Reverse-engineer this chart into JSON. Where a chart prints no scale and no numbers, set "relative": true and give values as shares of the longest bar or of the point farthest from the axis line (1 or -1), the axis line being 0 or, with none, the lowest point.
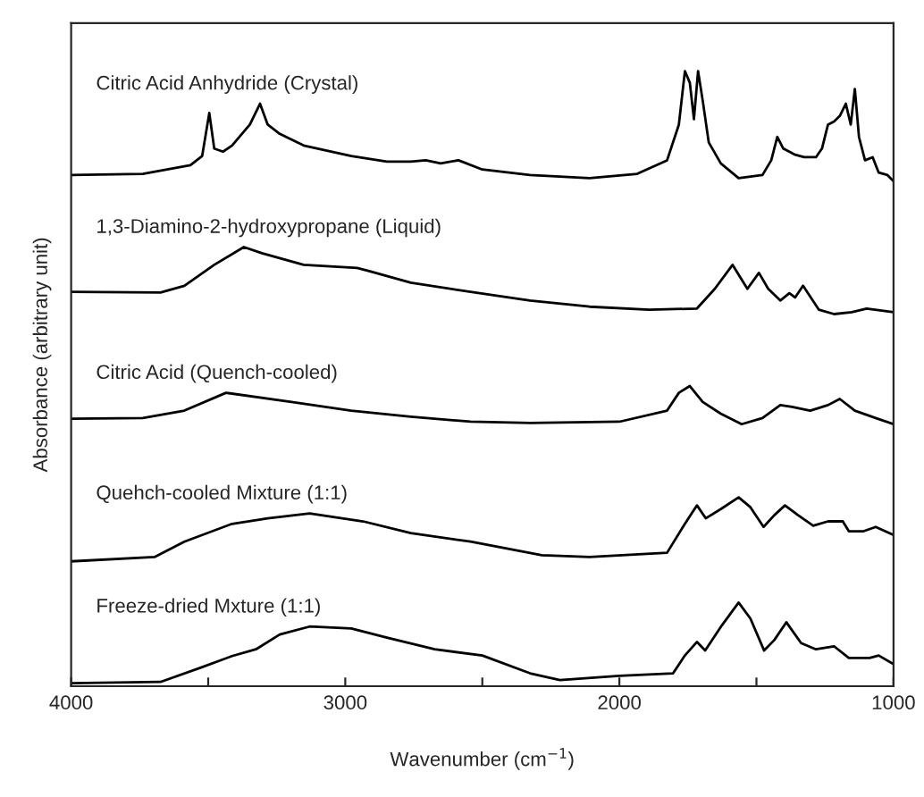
{
  "chart_data": {
    "type": "line",
    "relative": true,
    "xlabel": "Wavenumber (cm$^{−1}$)",
    "ylabel": "Absorbance (arbitrary unit)",
    "xlim": [
      4000,
      1000
    ],
    "xticks": [
      4000,
      {
        "value": 3500,
        "label": null
      },
      3000,
      {
        "value": 2500,
        "label": null
      },
      2000,
      {
        "value": 1500,
        "label": null
      },
      1000
    ],
    "grid": false,
    "legend": false,
    "tick_labels": "x",
    "line_style": "solid",
    "marker": "none",
    "series": [
      {
        "name": "Citric Acid Anhydride (Crystal)",
        "color": "#000000",
        "x": [
          4000,
          3739,
          3565,
          3522,
          3496,
          3478,
          3446,
          3413,
          3348,
          3311,
          3283,
          3239,
          3152,
          2978,
          2848,
          2761,
          2706,
          2652,
          2587,
          2500,
          2326,
          2109,
          1935,
          1826,
          1783,
          1761,
          1743,
          1728,
          1713,
          1696,
          1674,
          1630,
          1565,
          1478,
          1446,
          1424,
          1402,
          1380,
          1359,
          1326,
          1283,
          1261,
          1239,
          1217,
          1196,
          1174,
          1156,
          1141,
          1126,
          1104,
          1076,
          1054,
          1022,
          1000
        ],
        "values": [
          0.831,
          0.833,
          0.847,
          0.862,
          0.932,
          0.874,
          0.869,
          0.879,
          0.913,
          0.947,
          0.913,
          0.898,
          0.879,
          0.862,
          0.853,
          0.853,
          0.855,
          0.85,
          0.855,
          0.84,
          0.831,
          0.826,
          0.833,
          0.855,
          0.913,
          1.0,
          0.981,
          0.922,
          1.0,
          0.952,
          0.884,
          0.85,
          0.826,
          0.831,
          0.855,
          0.893,
          0.874,
          0.869,
          0.864,
          0.86,
          0.86,
          0.874,
          0.913,
          0.918,
          0.927,
          0.947,
          0.913,
          0.971,
          0.893,
          0.855,
          0.86,
          0.835,
          0.831,
          0.821
        ]
      },
      {
        "name": "1,3-Diamino-2-hydroxypropane (Liquid)",
        "color": "#000000",
        "x": [
          4000,
          3674,
          3587,
          3478,
          3370,
          3304,
          3152,
          2957,
          2913,
          2761,
          2543,
          2326,
          2109,
          1891,
          1717,
          1652,
          1587,
          1533,
          1491,
          1457,
          1413,
          1380,
          1359,
          1330,
          1272,
          1217,
          1152,
          1098,
          1000
        ],
        "values": [
          0.641,
          0.64,
          0.651,
          0.685,
          0.714,
          0.704,
          0.685,
          0.68,
          0.675,
          0.656,
          0.641,
          0.627,
          0.617,
          0.612,
          0.614,
          0.646,
          0.685,
          0.646,
          0.672,
          0.646,
          0.627,
          0.639,
          0.632,
          0.651,
          0.612,
          0.605,
          0.608,
          0.614,
          0.608
        ]
      },
      {
        "name": "Citric Acid (Quench-cooled)",
        "color": "#000000",
        "x": [
          4000,
          3739,
          3587,
          3435,
          3196,
          2978,
          2761,
          2543,
          2326,
          2000,
          1826,
          1783,
          1743,
          1696,
          1630,
          1554,
          1478,
          1413,
          1370,
          1304,
          1239,
          1196,
          1141,
          1065,
          1000
        ],
        "values": [
          0.435,
          0.436,
          0.448,
          0.477,
          0.462,
          0.448,
          0.438,
          0.43,
          0.428,
          0.43,
          0.448,
          0.477,
          0.488,
          0.462,
          0.443,
          0.426,
          0.436,
          0.457,
          0.454,
          0.448,
          0.457,
          0.467,
          0.448,
          0.436,
          0.426
        ]
      },
      {
        "name": "Quehch-cooled Mixture (1:1)",
        "color": "#000000",
        "x": [
          4000,
          3696,
          3587,
          3413,
          3283,
          3130,
          2935,
          2761,
          2543,
          2283,
          2109,
          1826,
          1761,
          1717,
          1685,
          1630,
          1565,
          1522,
          1474,
          1435,
          1396,
          1348,
          1293,
          1239,
          1185,
          1163,
          1109,
          1065,
          1000
        ],
        "values": [
          0.203,
          0.21,
          0.235,
          0.264,
          0.273,
          0.281,
          0.268,
          0.249,
          0.235,
          0.213,
          0.21,
          0.217,
          0.264,
          0.294,
          0.273,
          0.288,
          0.307,
          0.291,
          0.259,
          0.278,
          0.294,
          0.278,
          0.261,
          0.268,
          0.268,
          0.252,
          0.252,
          0.259,
          0.246
        ]
      },
      {
        "name": "Freeze-dried Mxture (1:1)",
        "color": "#000000",
        "x": [
          4000,
          3674,
          3522,
          3413,
          3326,
          3239,
          3130,
          2978,
          2848,
          2674,
          2500,
          2326,
          2217,
          2000,
          1804,
          1761,
          1717,
          1687,
          1626,
          1565,
          1522,
          1472,
          1435,
          1391,
          1337,
          1283,
          1217,
          1163,
          1087,
          1054,
          1000
        ],
        "values": [
          0.005,
          0.007,
          0.031,
          0.049,
          0.06,
          0.084,
          0.097,
          0.094,
          0.079,
          0.06,
          0.05,
          0.021,
          0.01,
          0.017,
          0.021,
          0.05,
          0.072,
          0.058,
          0.099,
          0.136,
          0.11,
          0.058,
          0.075,
          0.104,
          0.07,
          0.06,
          0.065,
          0.046,
          0.046,
          0.05,
          0.036
        ]
      }
    ]
  }
}
